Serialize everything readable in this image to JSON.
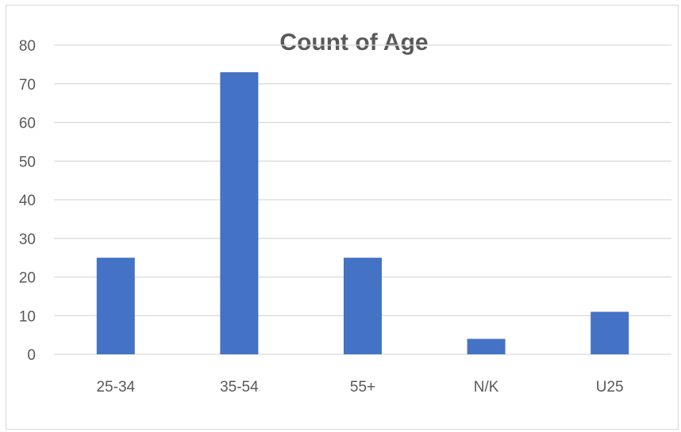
{
  "chart_data": {
    "type": "bar",
    "title": "Count of Age",
    "categories": [
      "25-34",
      "35-54",
      "55+",
      "N/K",
      "U25"
    ],
    "series": [
      {
        "values": [
          25,
          73,
          25,
          4,
          11
        ]
      }
    ],
    "xlabel": "",
    "ylabel": "",
    "ylim": [
      0,
      80
    ],
    "yticks": [
      0,
      10,
      20,
      30,
      40,
      50,
      60,
      70,
      80
    ],
    "grid": true,
    "legend": "none",
    "bar_color": "#4472c4",
    "grid_color": "#d9d9d9"
  }
}
